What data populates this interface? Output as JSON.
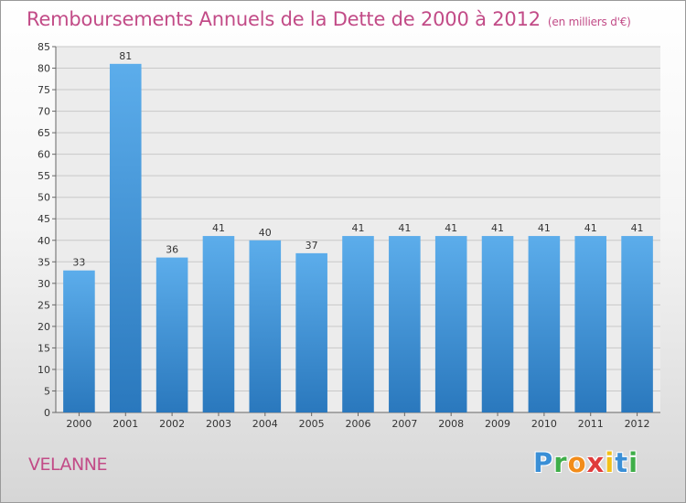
{
  "title": "Remboursements Annuels de la Dette de 2000 à 2012",
  "subtitle": "(en milliers d'€)",
  "commune": "VELANNE",
  "logo": {
    "letters": [
      {
        "ch": "P",
        "color": "#3a8fd6"
      },
      {
        "ch": "r",
        "color": "#3fae49"
      },
      {
        "ch": "o",
        "color": "#f28c1a"
      },
      {
        "ch": "x",
        "color": "#e03b3b"
      },
      {
        "ch": "i",
        "color": "#f2c01a"
      },
      {
        "ch": "t",
        "color": "#3a8fd6"
      },
      {
        "ch": "i",
        "color": "#3fae49"
      }
    ]
  },
  "chart_data": {
    "type": "bar",
    "categories": [
      "2000",
      "2001",
      "2002",
      "2003",
      "2004",
      "2005",
      "2006",
      "2007",
      "2008",
      "2009",
      "2010",
      "2011",
      "2012"
    ],
    "values": [
      33,
      81,
      36,
      41,
      40,
      37,
      41,
      41,
      41,
      41,
      41,
      41,
      41
    ],
    "ylim": [
      0,
      85
    ],
    "yticks": [
      0,
      5,
      10,
      15,
      20,
      25,
      30,
      35,
      40,
      45,
      50,
      55,
      60,
      65,
      70,
      75,
      80,
      85
    ],
    "grid": true,
    "bar_color": "#4d9fe0",
    "title": "Remboursements Annuels de la Dette de 2000 à 2012",
    "subtitle": "(en milliers d'€)"
  }
}
